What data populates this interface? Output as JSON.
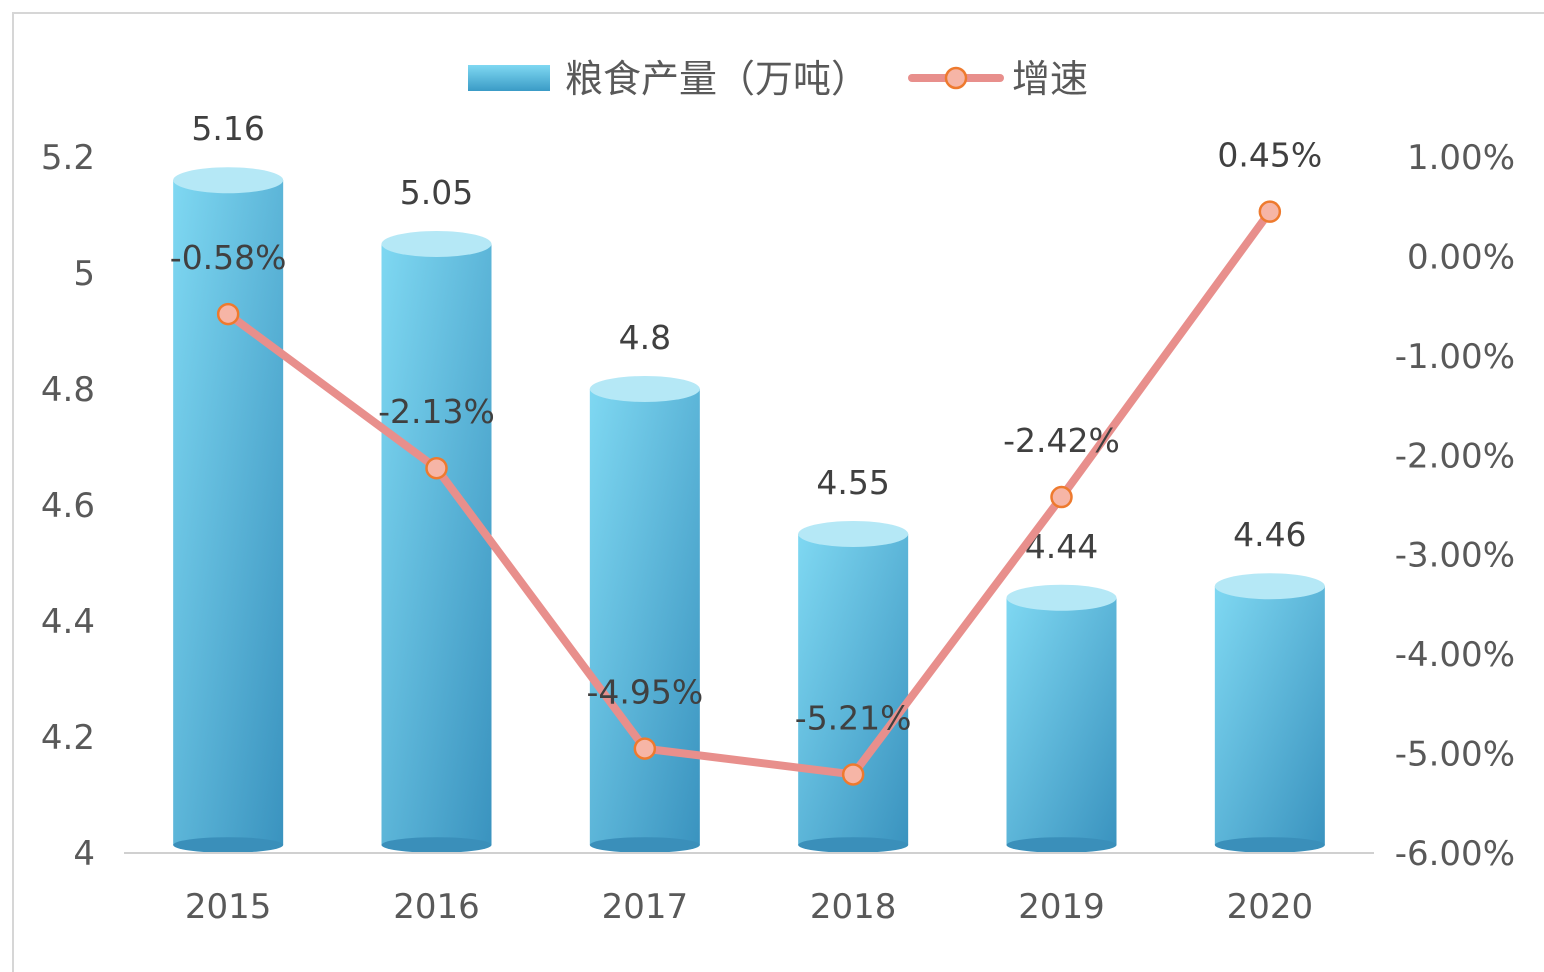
{
  "chart_data": {
    "type": "bar",
    "title": "",
    "xlabel": "",
    "ylabel": "",
    "categories": [
      "2015",
      "2016",
      "2017",
      "2018",
      "2019",
      "2020"
    ],
    "series": [
      {
        "name": "粮食产量（万吨）",
        "type": "bar",
        "axis": "left",
        "values": [
          5.16,
          5.05,
          4.8,
          4.55,
          4.44,
          4.46
        ],
        "labels": [
          "5.16",
          "5.05",
          "4.8",
          "4.55",
          "4.44",
          "4.46"
        ],
        "color": "#5bc0de"
      },
      {
        "name": "增速",
        "type": "line",
        "axis": "right",
        "values": [
          -0.58,
          -2.13,
          -4.95,
          -5.21,
          -2.42,
          0.45
        ],
        "labels": [
          "-0.58%",
          "-2.13%",
          "-4.95%",
          "-5.21%",
          "-2.42%",
          "0.45%"
        ],
        "color": "#e88f8c",
        "marker_fill": "#f6b5a6",
        "marker_edge": "#ee7a2e"
      }
    ],
    "y_left": {
      "ylim": [
        4,
        5.2
      ],
      "ticks": [
        "4",
        "4.2",
        "4.4",
        "4.6",
        "4.8",
        "5",
        "5.2"
      ]
    },
    "y_right": {
      "ylim": [
        -6,
        1
      ],
      "ticks": [
        "-6.00%",
        "-5.00%",
        "-4.00%",
        "-3.00%",
        "-2.00%",
        "-1.00%",
        "0.00%",
        "1.00%"
      ]
    },
    "legend": {
      "position": "top",
      "entries": [
        "粮食产量（万吨）",
        "增速"
      ]
    },
    "grid": false
  }
}
